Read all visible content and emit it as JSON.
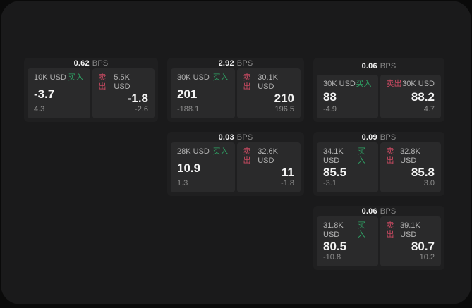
{
  "page": {
    "background": "#0a0a0a",
    "panel_background": "#1a1a1b",
    "card_background": "#1f1f20",
    "tile_background": "#2a2a2b",
    "buy_color": "#2fa566",
    "sell_color": "#c94a62"
  },
  "labels": {
    "bps_unit": "BPS",
    "buy": "买入",
    "sell": "卖出"
  },
  "cards": [
    {
      "row": 1,
      "col": 1,
      "bps": "0.62",
      "buy": {
        "size": "10K USD",
        "price": "-3.7",
        "change": "4.3"
      },
      "sell": {
        "size": "5.5K USD",
        "price": "-1.8",
        "change": "-2.6"
      }
    },
    {
      "row": 1,
      "col": 2,
      "bps": "2.92",
      "buy": {
        "size": "30K USD",
        "price": "201",
        "change": "-188.1"
      },
      "sell": {
        "size": "30.1K USD",
        "price": "210",
        "change": "196.5"
      }
    },
    {
      "row": 1,
      "col": 3,
      "bps": "0.06",
      "buy": {
        "size": "30K USD",
        "price": "88",
        "change": "-4.9"
      },
      "sell": {
        "size": "30K USD",
        "price": "88.2",
        "change": "4.7"
      }
    },
    {
      "row": 2,
      "col": 2,
      "bps": "0.03",
      "buy": {
        "size": "28K USD",
        "price": "10.9",
        "change": "1.3"
      },
      "sell": {
        "size": "32.6K USD",
        "price": "11",
        "change": "-1.8"
      }
    },
    {
      "row": 2,
      "col": 3,
      "bps": "0.09",
      "buy": {
        "size": "34.1K USD",
        "price": "85.5",
        "change": "-3.1"
      },
      "sell": {
        "size": "32.8K USD",
        "price": "85.8",
        "change": "3.0"
      }
    },
    {
      "row": 3,
      "col": 3,
      "bps": "0.06",
      "buy": {
        "size": "31.8K USD",
        "price": "80.5",
        "change": "-10.8"
      },
      "sell": {
        "size": "39.1K USD",
        "price": "80.7",
        "change": "10.2"
      }
    }
  ]
}
